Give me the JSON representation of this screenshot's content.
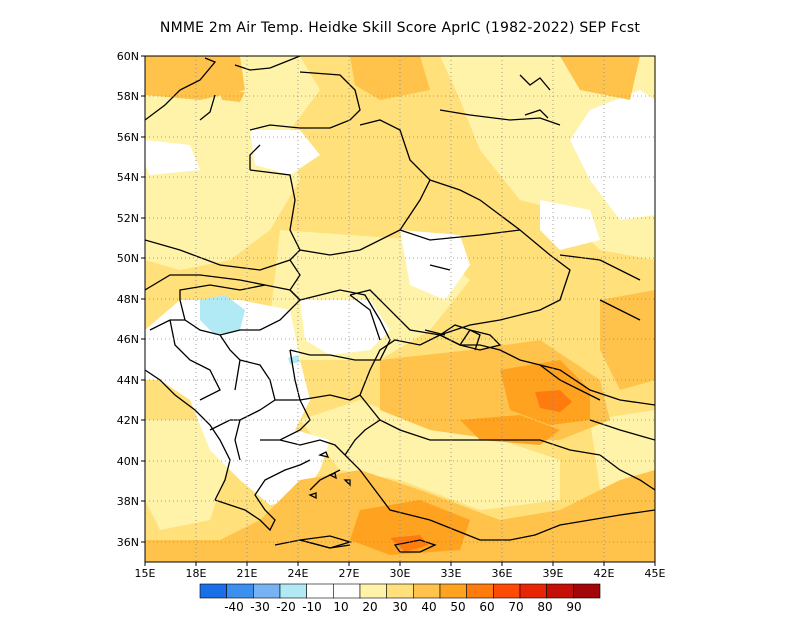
{
  "title": "NMME  2m Air Temp. Heidke Skill Score AprIC (1982-2022) SEP Fcst",
  "axes": {
    "lon_ticks": [
      "15E",
      "18E",
      "21E",
      "24E",
      "27E",
      "30E",
      "33E",
      "36E",
      "39E",
      "42E",
      "45E"
    ],
    "lat_ticks": [
      "60N",
      "58N",
      "56N",
      "54N",
      "52N",
      "50N",
      "48N",
      "46N",
      "44N",
      "42N",
      "40N",
      "38N",
      "36N"
    ],
    "lon_range": [
      15,
      45
    ],
    "lat_range": [
      35,
      60
    ],
    "grid": "dotted"
  },
  "colorbar": {
    "colors": [
      "#1a6fe8",
      "#3d8fef",
      "#77b3f3",
      "#b1e9f4",
      "#ffffff",
      "#ffffff",
      "#fff3aa",
      "#ffe07a",
      "#ffc24a",
      "#ffa21f",
      "#ff7b0e",
      "#ff4a05",
      "#e82606",
      "#c40f08",
      "#a30608"
    ],
    "boundaries": [
      "-40",
      "-30",
      "-20",
      "-10",
      "10",
      "20",
      "30",
      "40",
      "50",
      "60",
      "70",
      "80",
      "90"
    ]
  },
  "colors": {
    "bg_white": "#ffffff",
    "light_yellow": "#fff3aa",
    "yellow": "#ffe07a",
    "orange": "#ffc24a",
    "dark_orange": "#ffa21f",
    "red_orange": "#ff4a05",
    "light_blue": "#b1e9f4"
  }
}
